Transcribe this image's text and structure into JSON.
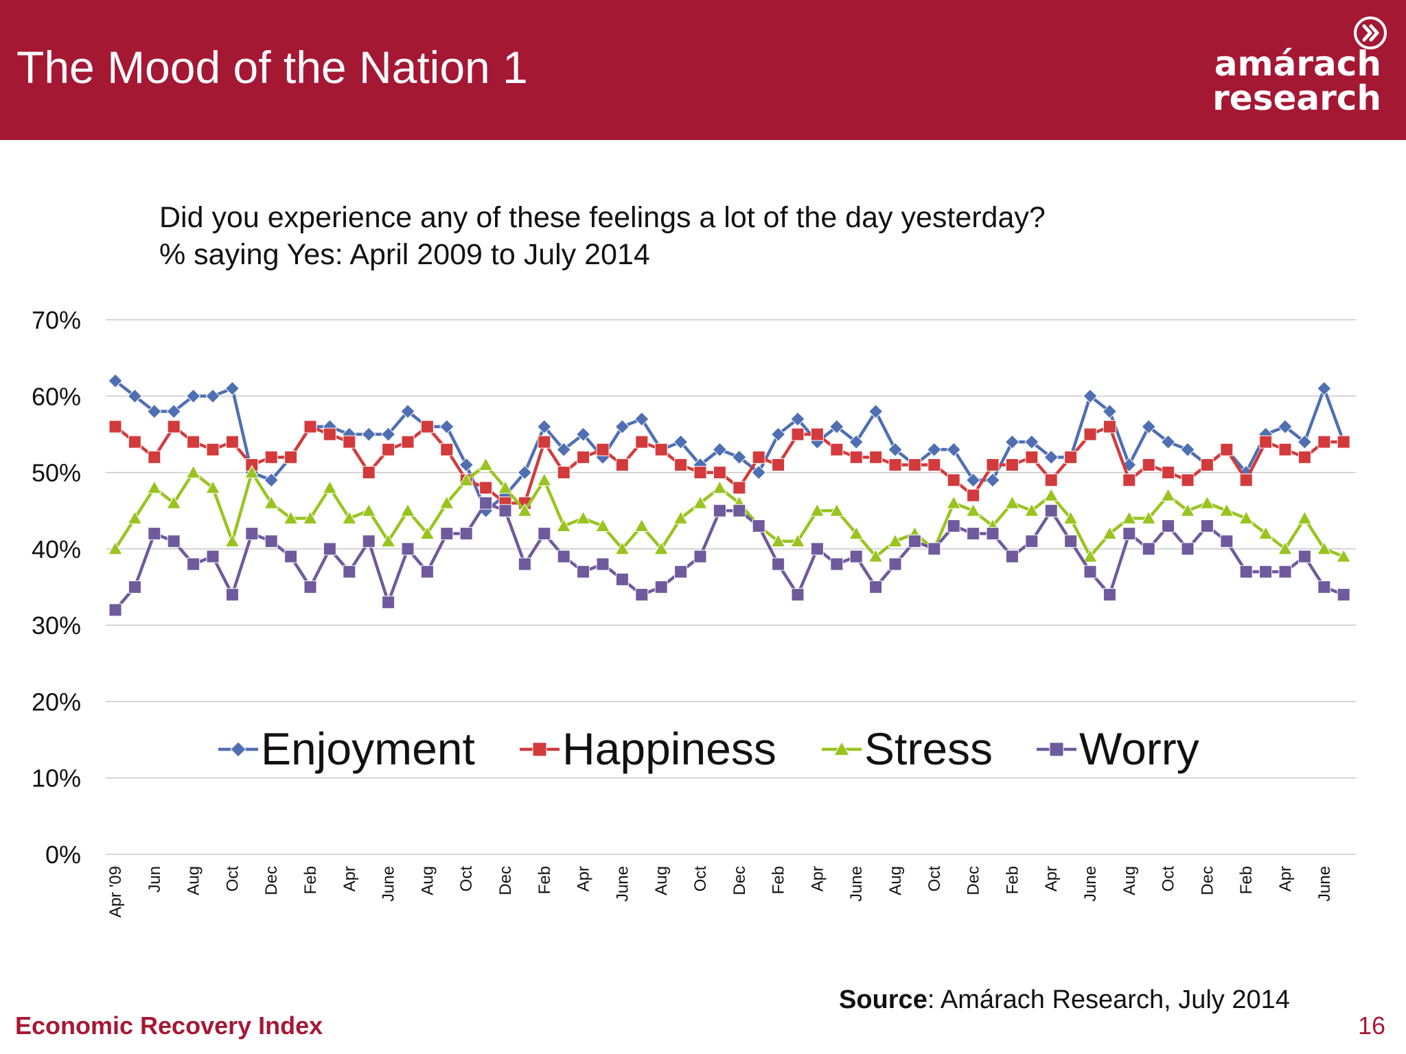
{
  "header": {
    "title": "The Mood of the Nation 1",
    "logo_line1": "amárach",
    "logo_line2": "research",
    "logo_icon": "chevron-circle-icon"
  },
  "question": {
    "line1": "Did you experience any of these feelings a lot of the day yesterday?",
    "line2": "% saying Yes: April 2009 to July 2014"
  },
  "footer": {
    "source_label": "Source",
    "source_text": ": Amárach Research, July 2014",
    "left": "Economic Recovery Index",
    "page": "16"
  },
  "colors": {
    "header_bg": "#a51834",
    "enjoyment": "#4f6fb3",
    "happiness": "#d33a3c",
    "stress": "#99c41f",
    "worry": "#6e5a9c"
  },
  "chart_data": {
    "type": "line",
    "ylim": [
      0,
      70
    ],
    "yticks": [
      "0%",
      "10%",
      "20%",
      "30%",
      "40%",
      "50%",
      "60%",
      "70%"
    ],
    "ytick_values": [
      0,
      10,
      20,
      30,
      40,
      50,
      60,
      70
    ],
    "grid": true,
    "legend_position": "center",
    "x_tick_labels": [
      "Apr '09",
      "Jun",
      "Aug",
      "Oct",
      "Dec",
      "Feb",
      "Apr",
      "June",
      "Aug",
      "Oct",
      "Dec",
      "Feb",
      "Apr",
      "June",
      "Aug",
      "Oct",
      "Dec",
      "Feb",
      "Apr",
      "June",
      "Aug",
      "Oct",
      "Dec",
      "Feb",
      "Apr",
      "June",
      "Aug",
      "Oct",
      "Dec",
      "Feb",
      "Apr",
      "June"
    ],
    "series": [
      {
        "name": "Enjoyment",
        "marker": "diamond",
        "color": "#4f6fb3",
        "values": [
          62,
          60,
          58,
          58,
          60,
          60,
          61,
          50,
          49,
          52,
          56,
          56,
          55,
          55,
          55,
          58,
          56,
          56,
          51,
          45,
          47,
          50,
          56,
          53,
          55,
          52,
          56,
          57,
          53,
          54,
          51,
          53,
          52,
          50,
          55,
          57,
          54,
          56,
          54,
          58,
          53,
          51,
          53,
          53,
          49,
          49,
          54,
          54,
          52,
          52,
          60,
          58,
          51,
          56,
          54,
          53,
          51,
          53,
          50,
          55,
          56,
          54,
          61,
          54
        ]
      },
      {
        "name": "Happiness",
        "marker": "square",
        "color": "#d33a3c",
        "values": [
          56,
          54,
          52,
          56,
          54,
          53,
          54,
          51,
          52,
          52,
          56,
          55,
          54,
          50,
          53,
          54,
          56,
          53,
          49,
          48,
          46,
          46,
          54,
          50,
          52,
          53,
          51,
          54,
          53,
          51,
          50,
          50,
          48,
          52,
          51,
          55,
          55,
          53,
          52,
          52,
          51,
          51,
          51,
          49,
          47,
          51,
          51,
          52,
          49,
          52,
          55,
          56,
          49,
          51,
          50,
          49,
          51,
          53,
          49,
          54,
          53,
          52,
          54,
          54
        ]
      },
      {
        "name": "Stress",
        "marker": "triangle",
        "color": "#99c41f",
        "values": [
          40,
          44,
          48,
          46,
          50,
          48,
          41,
          50,
          46,
          44,
          44,
          48,
          44,
          45,
          41,
          45,
          42,
          46,
          49,
          51,
          48,
          45,
          49,
          43,
          44,
          43,
          40,
          43,
          40,
          44,
          46,
          48,
          46,
          43,
          41,
          41,
          45,
          45,
          42,
          39,
          41,
          42,
          40,
          46,
          45,
          43,
          46,
          45,
          47,
          44,
          39,
          42,
          44,
          44,
          47,
          45,
          46,
          45,
          44,
          42,
          40,
          44,
          40,
          39
        ]
      },
      {
        "name": "Worry",
        "marker": "square",
        "color": "#6e5a9c",
        "values": [
          32,
          35,
          42,
          41,
          38,
          39,
          34,
          42,
          41,
          39,
          35,
          40,
          37,
          41,
          33,
          40,
          37,
          42,
          42,
          46,
          45,
          38,
          42,
          39,
          37,
          38,
          36,
          34,
          35,
          37,
          39,
          45,
          45,
          43,
          38,
          34,
          40,
          38,
          39,
          35,
          38,
          41,
          40,
          43,
          42,
          42,
          39,
          41,
          45,
          41,
          37,
          34,
          42,
          40,
          43,
          40,
          43,
          41,
          37,
          37,
          37,
          39,
          35,
          34
        ]
      }
    ]
  }
}
